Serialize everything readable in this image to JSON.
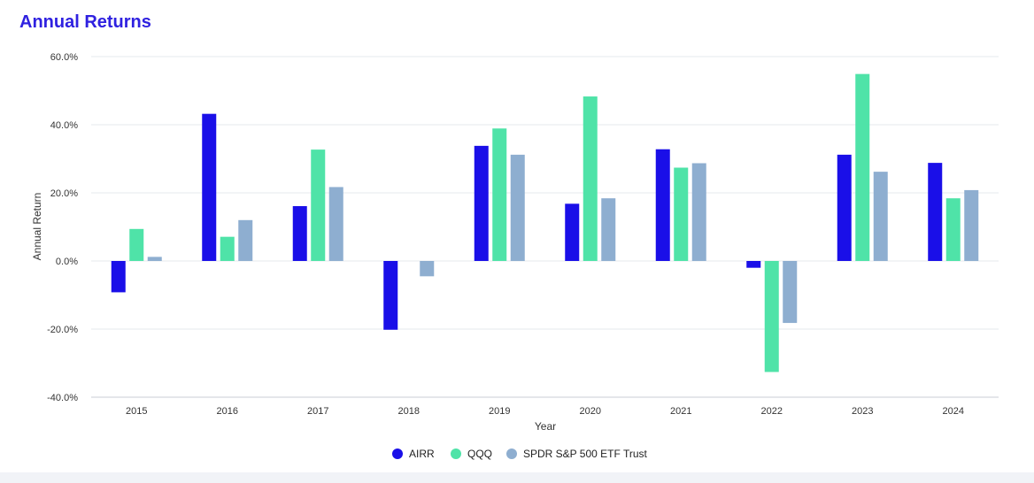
{
  "header": {
    "title": "Annual Returns"
  },
  "chart_data": {
    "type": "bar",
    "title": "Annual Returns",
    "xlabel": "Year",
    "ylabel": "Annual Return",
    "categories": [
      "2015",
      "2016",
      "2017",
      "2018",
      "2019",
      "2020",
      "2021",
      "2022",
      "2023",
      "2024"
    ],
    "series": [
      {
        "name": "AIRR",
        "color": "#1a0fe8",
        "values": [
          -9.2,
          43.2,
          16.1,
          -20.2,
          33.8,
          16.8,
          32.8,
          -2.0,
          31.2,
          28.8
        ]
      },
      {
        "name": "QQQ",
        "color": "#4fe3a8",
        "values": [
          9.4,
          7.1,
          32.7,
          0.0,
          38.9,
          48.3,
          27.4,
          -32.6,
          54.9,
          18.4
        ]
      },
      {
        "name": "SPDR S&P 500 ETF Trust",
        "color": "#8eaed0",
        "values": [
          1.2,
          12.0,
          21.7,
          -4.5,
          31.2,
          18.4,
          28.7,
          -18.2,
          26.2,
          20.8
        ]
      }
    ],
    "ylim": [
      -40,
      60
    ],
    "yticks": [
      -40,
      -20,
      0,
      20,
      40,
      60
    ],
    "ytick_labels": [
      "-40.0%",
      "-20.0%",
      "0.0%",
      "20.0%",
      "40.0%",
      "60.0%"
    ],
    "grid": true,
    "legend_position": "bottom"
  }
}
